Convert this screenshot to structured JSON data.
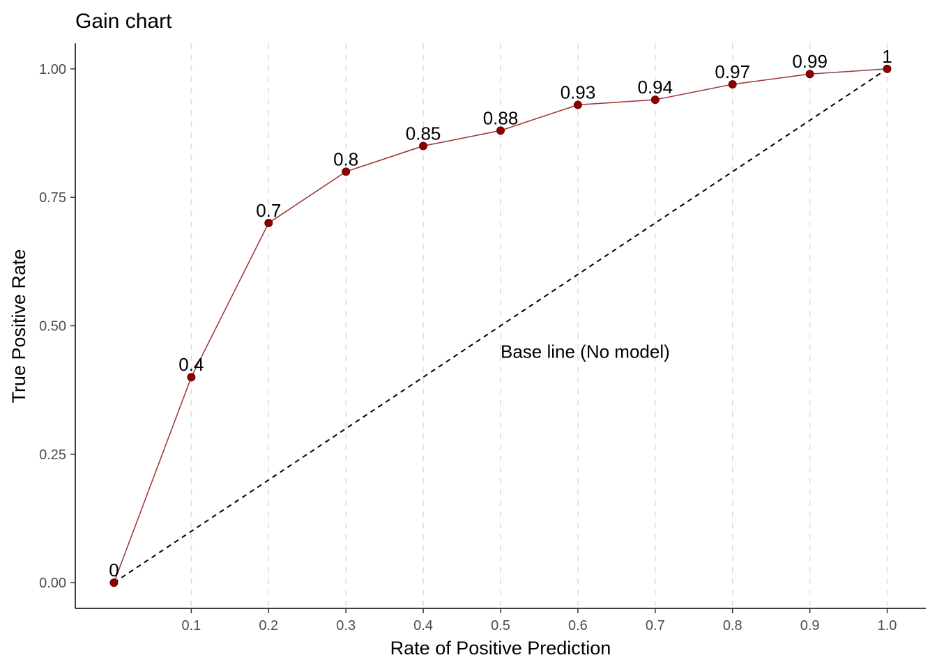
{
  "chart_data": {
    "type": "line",
    "title": "Gain chart",
    "xlabel": "Rate of Positive Prediction",
    "ylabel": "True Positive Rate",
    "xlim": [
      -0.05,
      1.05
    ],
    "ylim": [
      -0.05,
      1.05
    ],
    "x_ticks": [
      "0.1",
      "0.2",
      "0.3",
      "0.4",
      "0.5",
      "0.6",
      "0.7",
      "0.8",
      "0.9",
      "1.0"
    ],
    "y_ticks": [
      "0.00",
      "0.25",
      "0.50",
      "0.75",
      "1.00"
    ],
    "grid": "vertical dashed at x ticks",
    "series": [
      {
        "x": [
          0,
          0.1,
          0.2,
          0.3,
          0.4,
          0.5,
          0.6,
          0.7,
          0.8,
          0.9,
          1.0
        ],
        "y": [
          0,
          0.4,
          0.7,
          0.8,
          0.85,
          0.88,
          0.93,
          0.94,
          0.97,
          0.99,
          1
        ],
        "labels": [
          "0",
          "0.4",
          "0.7",
          "0.8",
          "0.85",
          "0.88",
          "0.93",
          "0.94",
          "0.97",
          "0.99",
          "1"
        ],
        "color": "#8b0000"
      }
    ],
    "baseline": {
      "x": [
        0,
        1
      ],
      "y": [
        0,
        1
      ],
      "style": "dashed",
      "color": "#000000"
    },
    "annotations": [
      {
        "text": "Base line (No model)",
        "x": 0.5,
        "y": 0.45
      }
    ]
  }
}
